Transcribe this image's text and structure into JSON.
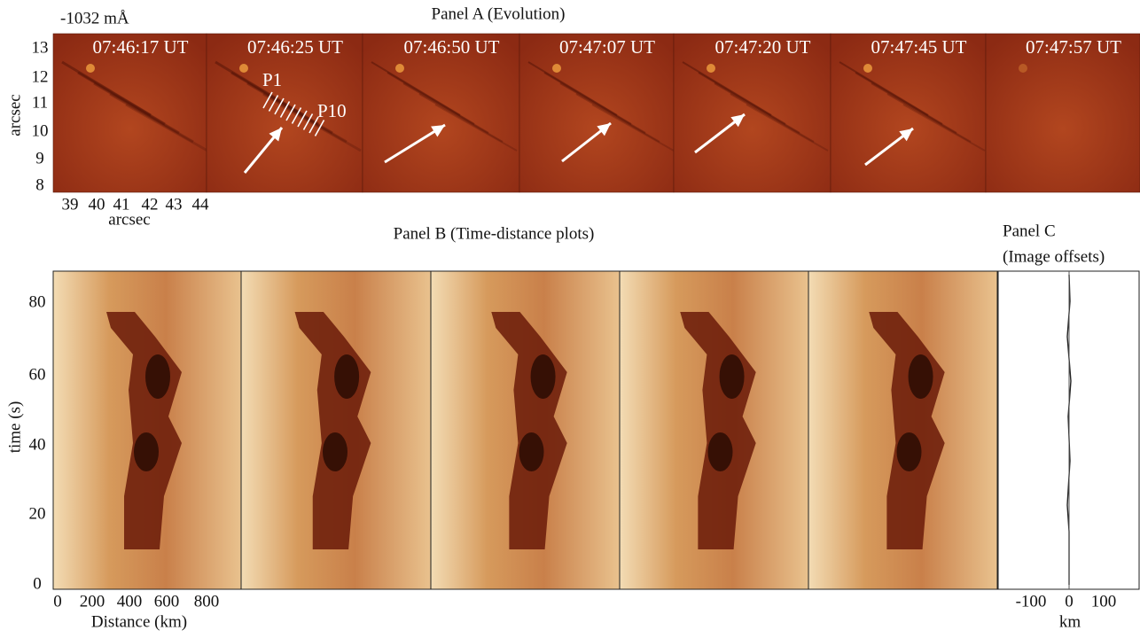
{
  "panel_a": {
    "title": "Panel A (Evolution)",
    "wavelength": "-1032 mÅ",
    "y_axis_label": "arcsec",
    "x_axis_label": "arcsec",
    "y_ticks": [
      "13",
      "12",
      "11",
      "10",
      "9",
      "8"
    ],
    "x_ticks": [
      "39",
      "40",
      "41",
      "42",
      "43",
      "44"
    ],
    "frames": [
      "07:46:17 UT",
      "07:46:25 UT",
      "07:46:50 UT",
      "07:47:07 UT",
      "07:47:20 UT",
      "07:47:45 UT",
      "07:47:57 UT"
    ],
    "path_start": "P1",
    "path_end": "P10"
  },
  "panel_b": {
    "title": "Panel  B (Time-distance plots)",
    "y_axis_label": "time (s)",
    "x_axis_label": "Distance (km)",
    "y_ticks": [
      "80",
      "60",
      "40",
      "20",
      "0"
    ],
    "x_ticks": [
      "0",
      "200",
      "400",
      "600",
      "800"
    ]
  },
  "panel_c": {
    "title": "Panel  C",
    "subtitle": "(Image offsets)",
    "x_axis_label": "km",
    "x_ticks": [
      "-100",
      "0",
      "100"
    ]
  }
}
